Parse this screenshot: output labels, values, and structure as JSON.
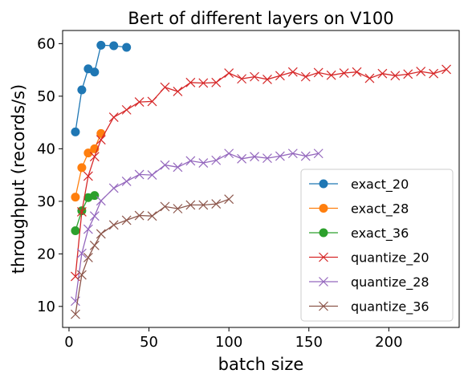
{
  "chart_data": {
    "type": "line",
    "title": "Bert of different layers on V100",
    "xlabel": "batch size",
    "ylabel": "throughput (records/s)",
    "xlim": [
      -4,
      244
    ],
    "ylim": [
      6,
      62.5
    ],
    "xticks": [
      0,
      50,
      100,
      150,
      200
    ],
    "yticks": [
      10,
      20,
      30,
      40,
      50,
      60
    ],
    "grid": false,
    "legend_position": "lower-right",
    "series": [
      {
        "name": "exact_20",
        "color": "#1f77b4",
        "marker": "circle",
        "x": [
          4,
          8,
          12,
          16,
          20,
          28,
          36
        ],
        "y": [
          43.2,
          51.2,
          55.2,
          54.6,
          59.7,
          59.6,
          59.3
        ]
      },
      {
        "name": "exact_28",
        "color": "#ff7f0e",
        "marker": "circle",
        "x": [
          4,
          8,
          12,
          16,
          20
        ],
        "y": [
          30.8,
          36.4,
          39.2,
          40.0,
          42.9
        ]
      },
      {
        "name": "exact_36",
        "color": "#2ca02c",
        "marker": "circle",
        "x": [
          4,
          8,
          12,
          16
        ],
        "y": [
          24.4,
          28.2,
          30.7,
          31.1
        ]
      },
      {
        "name": "quantize_20",
        "color": "#d62728",
        "marker": "x",
        "x": [
          4,
          8,
          12,
          16,
          20,
          28,
          36,
          44,
          52,
          60,
          68,
          76,
          84,
          92,
          100,
          108,
          116,
          124,
          132,
          140,
          148,
          156,
          164,
          172,
          180,
          188,
          196,
          204,
          212,
          220,
          228,
          236
        ],
        "y": [
          15.7,
          28.0,
          34.8,
          38.5,
          41.7,
          46.0,
          47.4,
          48.9,
          49.0,
          51.7,
          50.9,
          52.6,
          52.5,
          52.6,
          54.4,
          53.3,
          53.7,
          53.2,
          53.9,
          54.6,
          53.7,
          54.5,
          54.0,
          54.4,
          54.6,
          53.4,
          54.3,
          53.9,
          54.2,
          54.7,
          54.3,
          55.1
        ]
      },
      {
        "name": "quantize_28",
        "color": "#9467bd",
        "marker": "x",
        "x": [
          4,
          8,
          12,
          16,
          20,
          28,
          36,
          44,
          52,
          60,
          68,
          76,
          84,
          92,
          100,
          108,
          116,
          124,
          132,
          140,
          148,
          156
        ],
        "y": [
          11.0,
          20.1,
          24.7,
          27.2,
          30.1,
          32.5,
          33.8,
          35.1,
          35.0,
          36.9,
          36.5,
          37.7,
          37.3,
          37.8,
          39.1,
          38.1,
          38.5,
          38.2,
          38.6,
          39.1,
          38.6,
          39.1
        ]
      },
      {
        "name": "quantize_36",
        "color": "#8c564b",
        "marker": "x",
        "x": [
          4,
          8,
          12,
          16,
          20,
          28,
          36,
          44,
          52,
          60,
          68,
          76,
          84,
          92,
          100
        ],
        "y": [
          8.5,
          16.0,
          19.3,
          21.6,
          23.8,
          25.5,
          26.4,
          27.3,
          27.2,
          29.0,
          28.6,
          29.3,
          29.3,
          29.5,
          30.4
        ]
      }
    ]
  }
}
